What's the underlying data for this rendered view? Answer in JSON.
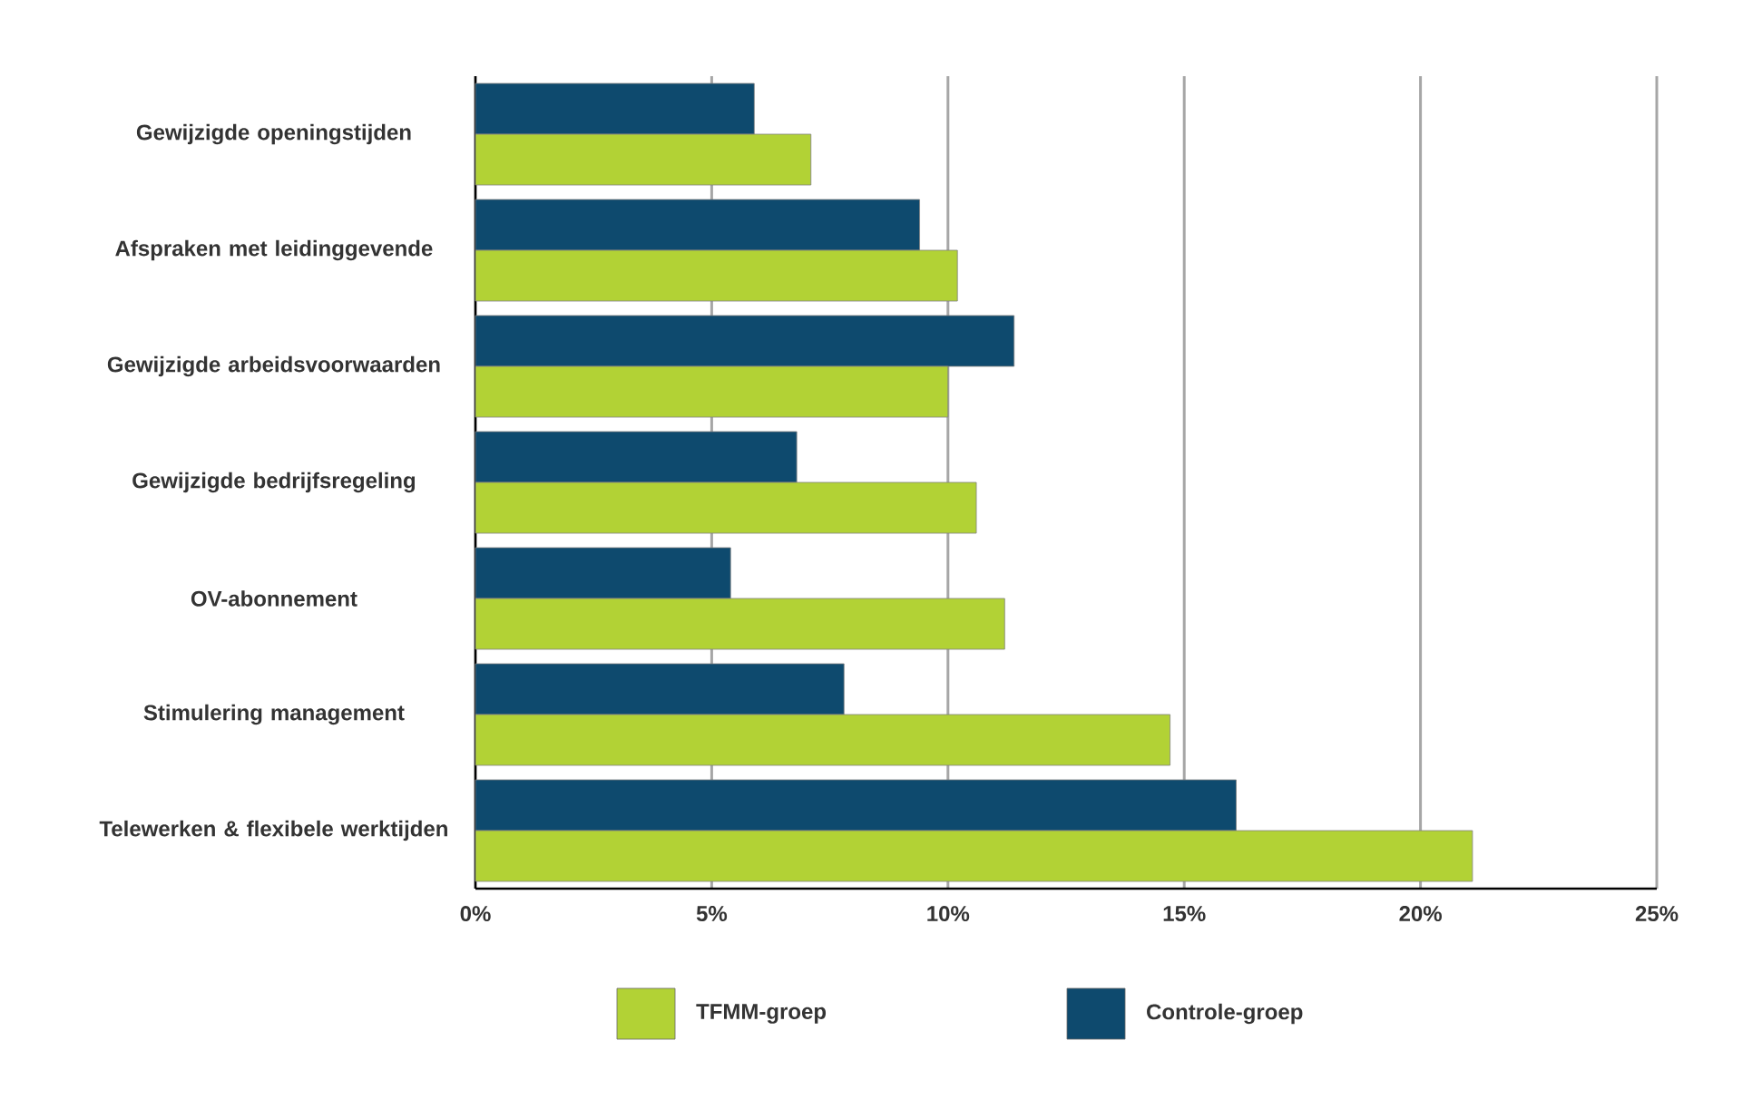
{
  "chart_data": {
    "type": "bar",
    "orientation": "horizontal",
    "categories": [
      "Gewijzigde openingstijden",
      "Afspraken met leidinggevende",
      "Gewijzigde arbeidsvoorwaarden",
      "Gewijzigde bedrijfsregeling",
      "OV-abonnement",
      "Stimulering management",
      "Telewerken & flexibele werktijden"
    ],
    "series": [
      {
        "name": "TFMM-groep",
        "color": "#b2d235",
        "values": [
          7.1,
          10.2,
          10.0,
          10.6,
          11.2,
          14.7,
          21.1
        ]
      },
      {
        "name": "Controle-groep",
        "color": "#0e4a6e",
        "values": [
          5.9,
          9.4,
          11.4,
          6.8,
          5.4,
          7.8,
          16.1
        ]
      }
    ],
    "xlim": [
      0,
      25
    ],
    "xticks": [
      {
        "value": 0,
        "label": "0%"
      },
      {
        "value": 5,
        "label": "5%"
      },
      {
        "value": 10,
        "label": "10%"
      },
      {
        "value": 15,
        "label": "15%"
      },
      {
        "value": 20,
        "label": "20%"
      },
      {
        "value": 25,
        "label": "25%"
      }
    ],
    "grid": "x",
    "legend": "bottom"
  }
}
